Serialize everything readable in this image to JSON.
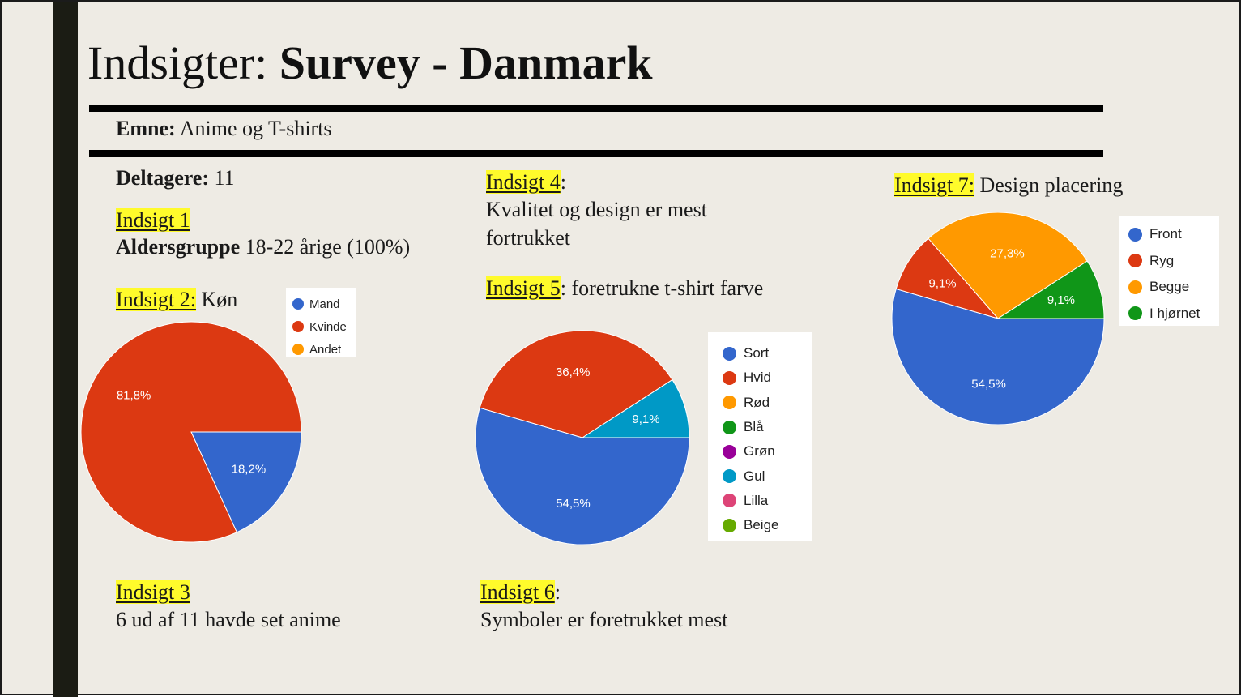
{
  "title": {
    "regular": "Indsigter: ",
    "bold": "Survey - Danmark"
  },
  "topic": {
    "label": "Emne:",
    "value": "Anime og T-shirts"
  },
  "participants": {
    "label": "Deltagere:",
    "value": "11"
  },
  "insight1": {
    "heading": "Indsigt 1",
    "label": "Aldersgruppe",
    "value": "18-22 årige (100%)"
  },
  "insight2": {
    "heading": "Indsigt 2:",
    "text": "Køn"
  },
  "insight3": {
    "heading": "Indsigt 3",
    "text": "6 ud af 11 havde set anime"
  },
  "insight4": {
    "heading": "Indsigt 4",
    "suffix": ":",
    "line1": "Kvalitet og design er mest",
    "line2": "fortrukket"
  },
  "insight5": {
    "heading": "Indsigt 5",
    "text": ": foretrukne t-shirt farve"
  },
  "insight6": {
    "heading": "Indsigt 6",
    "suffix": ":",
    "text": "Symboler er foretrukket mest"
  },
  "insight7": {
    "heading": "Indsigt 7:",
    "text": "Design placering"
  },
  "chart_data": [
    {
      "type": "pie",
      "categories": [
        "Mand",
        "Kvinde",
        "Andet"
      ],
      "values": [
        18.2,
        81.8,
        0
      ],
      "labels": [
        "18,2%",
        "81,8%",
        ""
      ],
      "colors": [
        "#3366cc",
        "#dc3912",
        "#ff9900"
      ],
      "legend": "right-top"
    },
    {
      "type": "pie",
      "categories": [
        "Sort",
        "Hvid",
        "Rød",
        "Blå",
        "Grøn",
        "Gul",
        "Lilla",
        "Beige"
      ],
      "values": [
        54.5,
        36.4,
        0,
        0,
        0,
        9.1,
        0,
        0
      ],
      "labels": [
        "54,5%",
        "36,4%",
        "",
        "",
        "",
        "9,1%",
        "",
        ""
      ],
      "colors": [
        "#3366cc",
        "#dc3912",
        "#ff9900",
        "#109618",
        "#990099",
        "#0099c6",
        "#dd4477",
        "#66aa00"
      ],
      "legend": "right"
    },
    {
      "type": "pie",
      "categories": [
        "Front",
        "Ryg",
        "Begge",
        "I hjørnet"
      ],
      "values": [
        54.5,
        9.1,
        27.3,
        9.1
      ],
      "labels": [
        "54,5%",
        "9,1%",
        "27,3%",
        "9,1%"
      ],
      "colors": [
        "#3366cc",
        "#dc3912",
        "#ff9900",
        "#109618"
      ],
      "legend": "right-top"
    }
  ]
}
